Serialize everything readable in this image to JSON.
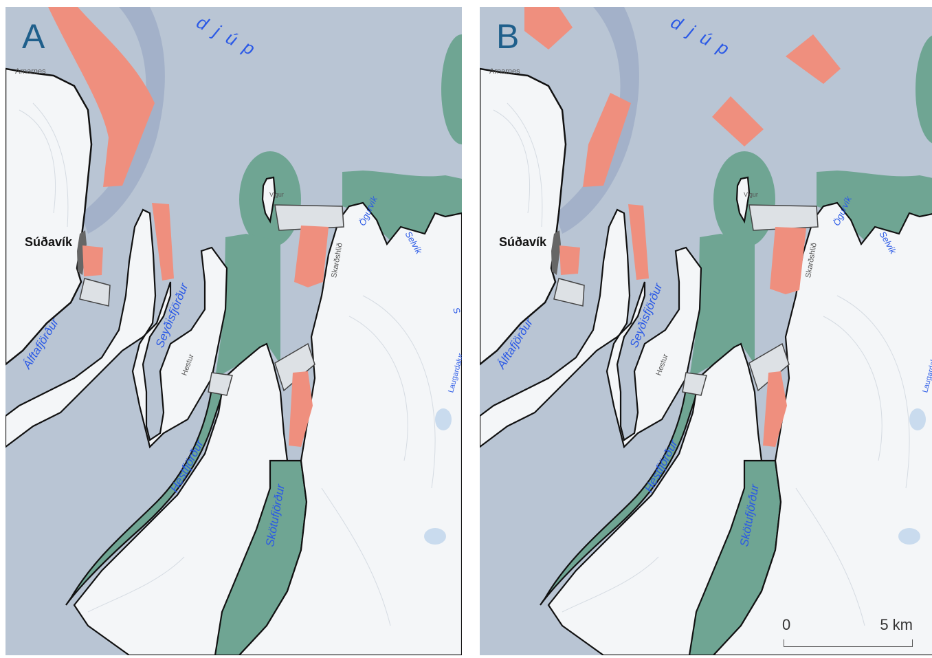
{
  "panels": [
    {
      "letter": "A",
      "labels": {
        "sea": "djúp",
        "point": "Arnarnes",
        "town": "Súðavík",
        "fjord_alfta": "Álftafjörður",
        "fjord_seydis": "Seyðisfjörður",
        "fjord_hest": "Hestfjörður",
        "fjord_skotu": "Skötufjörður",
        "bay_ogur": "Ögurvík",
        "bay_sel": "Selvík",
        "vigur": "Vigur",
        "place_hestur": "Hestur",
        "place_skard": "Skarðshlið",
        "place_laugard": "Laugardalur",
        "edge_s": "S"
      }
    },
    {
      "letter": "B",
      "labels": {
        "sea": "djúp",
        "point": "Arnarnes",
        "town": "Súðavík",
        "fjord_alfta": "Álftafjörður",
        "fjord_seydis": "Seyðisfjörður",
        "fjord_hest": "Hestfjörður",
        "fjord_skotu": "Skötufjörður",
        "bay_ogur": "Ögurvík",
        "bay_sel": "Selvík",
        "vigur": "Vigur",
        "place_hestur": "Hestur",
        "place_skard": "Skarðshlið",
        "place_laugard": "Laugardalur"
      }
    }
  ],
  "scale": {
    "zero": "0",
    "end": "5 km"
  },
  "colors": {
    "sea": "#b9c5d4",
    "channel": "#a3b1c9",
    "land": "#f4f6f8",
    "protected": "#6fa593",
    "aquaculture": "#ef8f7e",
    "crossing": "#dde1e5"
  }
}
